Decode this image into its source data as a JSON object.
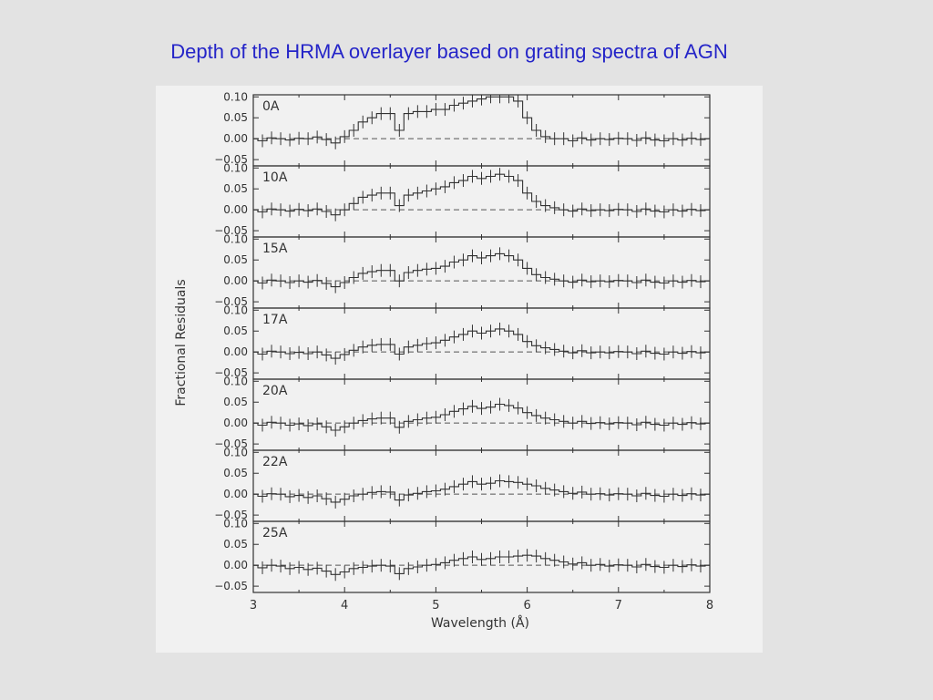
{
  "slide": {
    "title": "Depth of the HRMA overlayer based on grating spectra of AGN"
  },
  "colors": {
    "title": "#2525c8",
    "background": "#e3e3e3",
    "figure_background": "#f1f1f1",
    "data_line": "#333333",
    "reference_line": "#555555"
  },
  "chart_data": {
    "type": "line",
    "xlabel": "Wavelength (Å)",
    "ylabel": "Fractional Residuals",
    "xlim": [
      3,
      8
    ],
    "ylim": [
      -0.065,
      0.105
    ],
    "x_ticks": [
      "3",
      "4",
      "5",
      "6",
      "7",
      "8"
    ],
    "y_ticks": [
      "0.10",
      "0.05",
      "0.00",
      "−0.05"
    ],
    "reference_line": "dashed at 0.00",
    "grid": false,
    "x": [
      3.0,
      3.1,
      3.2,
      3.3,
      3.4,
      3.5,
      3.6,
      3.7,
      3.8,
      3.9,
      4.0,
      4.1,
      4.2,
      4.3,
      4.4,
      4.5,
      4.6,
      4.7,
      4.8,
      4.9,
      5.0,
      5.1,
      5.2,
      5.3,
      5.4,
      5.5,
      5.6,
      5.7,
      5.8,
      5.9,
      6.0,
      6.1,
      6.2,
      6.3,
      6.4,
      6.5,
      6.6,
      6.7,
      6.8,
      6.9,
      7.0,
      7.1,
      7.2,
      7.3,
      7.4,
      7.5,
      7.6,
      7.7,
      7.8,
      7.9,
      8.0
    ],
    "series": [
      {
        "name": "0A",
        "values": [
          0.0,
          -0.005,
          0.002,
          0.0,
          -0.003,
          0.001,
          0.0,
          0.004,
          -0.002,
          -0.01,
          0.005,
          0.02,
          0.04,
          0.05,
          0.06,
          0.06,
          0.02,
          0.06,
          0.065,
          0.065,
          0.07,
          0.07,
          0.08,
          0.085,
          0.09,
          0.095,
          0.1,
          0.1,
          0.1,
          0.09,
          0.05,
          0.02,
          0.005,
          0.0,
          0.0,
          -0.005,
          0.002,
          -0.003,
          0.0,
          -0.002,
          0.001,
          0.0,
          -0.004,
          0.002,
          -0.003,
          -0.005,
          0.0,
          -0.003,
          0.001,
          -0.002,
          0.0
        ]
      },
      {
        "name": "10A",
        "values": [
          0.0,
          -0.005,
          0.002,
          0.0,
          -0.003,
          0.001,
          -0.002,
          0.002,
          -0.004,
          -0.012,
          0.0,
          0.015,
          0.03,
          0.035,
          0.04,
          0.04,
          0.01,
          0.035,
          0.04,
          0.045,
          0.05,
          0.055,
          0.065,
          0.07,
          0.08,
          0.075,
          0.08,
          0.085,
          0.08,
          0.07,
          0.04,
          0.02,
          0.01,
          0.005,
          0.0,
          -0.003,
          0.002,
          -0.002,
          0.0,
          -0.002,
          0.001,
          0.0,
          -0.004,
          0.002,
          -0.003,
          -0.005,
          0.0,
          -0.003,
          0.001,
          -0.002,
          0.0
        ]
      },
      {
        "name": "15A",
        "values": [
          0.0,
          -0.005,
          0.002,
          0.0,
          -0.004,
          0.0,
          -0.003,
          0.001,
          -0.006,
          -0.014,
          -0.004,
          0.008,
          0.018,
          0.022,
          0.025,
          0.025,
          0.0,
          0.02,
          0.025,
          0.028,
          0.03,
          0.035,
          0.045,
          0.05,
          0.06,
          0.055,
          0.06,
          0.065,
          0.06,
          0.05,
          0.03,
          0.015,
          0.008,
          0.004,
          0.0,
          -0.003,
          0.002,
          -0.002,
          0.0,
          -0.002,
          0.001,
          0.0,
          -0.004,
          0.002,
          -0.003,
          -0.005,
          0.0,
          -0.003,
          0.001,
          -0.002,
          0.0
        ]
      },
      {
        "name": "17A",
        "values": [
          0.0,
          -0.005,
          0.002,
          0.0,
          -0.004,
          -0.001,
          -0.004,
          0.0,
          -0.007,
          -0.015,
          -0.006,
          0.004,
          0.012,
          0.016,
          0.018,
          0.018,
          -0.005,
          0.012,
          0.016,
          0.02,
          0.022,
          0.028,
          0.036,
          0.042,
          0.05,
          0.045,
          0.05,
          0.055,
          0.05,
          0.042,
          0.025,
          0.015,
          0.01,
          0.006,
          0.002,
          -0.002,
          0.003,
          -0.002,
          0.0,
          -0.002,
          0.001,
          0.0,
          -0.004,
          0.002,
          -0.003,
          -0.005,
          0.0,
          -0.003,
          0.001,
          -0.002,
          0.0
        ]
      },
      {
        "name": "20A",
        "values": [
          0.0,
          -0.005,
          0.002,
          0.0,
          -0.005,
          -0.002,
          -0.006,
          -0.002,
          -0.009,
          -0.017,
          -0.009,
          0.0,
          0.006,
          0.01,
          0.012,
          0.012,
          -0.01,
          0.004,
          0.008,
          0.012,
          0.014,
          0.02,
          0.028,
          0.034,
          0.04,
          0.035,
          0.038,
          0.045,
          0.042,
          0.036,
          0.025,
          0.018,
          0.012,
          0.008,
          0.004,
          0.0,
          0.004,
          -0.001,
          0.001,
          -0.002,
          0.001,
          0.0,
          -0.004,
          0.002,
          -0.003,
          -0.005,
          0.0,
          -0.003,
          0.001,
          -0.002,
          0.0
        ]
      },
      {
        "name": "22A",
        "values": [
          0.0,
          -0.005,
          0.001,
          0.0,
          -0.006,
          -0.003,
          -0.008,
          -0.004,
          -0.011,
          -0.019,
          -0.012,
          -0.004,
          0.0,
          0.004,
          0.006,
          0.005,
          -0.014,
          -0.002,
          0.002,
          0.006,
          0.008,
          0.012,
          0.018,
          0.024,
          0.03,
          0.024,
          0.026,
          0.032,
          0.03,
          0.028,
          0.024,
          0.02,
          0.014,
          0.01,
          0.006,
          0.002,
          0.005,
          0.0,
          0.001,
          -0.002,
          0.001,
          0.0,
          -0.004,
          0.002,
          -0.003,
          -0.005,
          0.0,
          -0.003,
          0.001,
          -0.002,
          0.0
        ]
      },
      {
        "name": "25A",
        "values": [
          0.0,
          -0.006,
          0.0,
          -0.002,
          -0.008,
          -0.005,
          -0.01,
          -0.007,
          -0.014,
          -0.022,
          -0.016,
          -0.008,
          -0.005,
          -0.002,
          0.0,
          -0.002,
          -0.02,
          -0.008,
          -0.004,
          0.0,
          0.002,
          0.006,
          0.012,
          0.016,
          0.02,
          0.014,
          0.016,
          0.02,
          0.02,
          0.022,
          0.024,
          0.022,
          0.016,
          0.012,
          0.008,
          0.003,
          0.006,
          0.0,
          0.002,
          -0.002,
          0.001,
          0.0,
          -0.004,
          0.002,
          -0.003,
          -0.005,
          0.0,
          -0.003,
          0.001,
          -0.002,
          0.0
        ]
      }
    ]
  }
}
